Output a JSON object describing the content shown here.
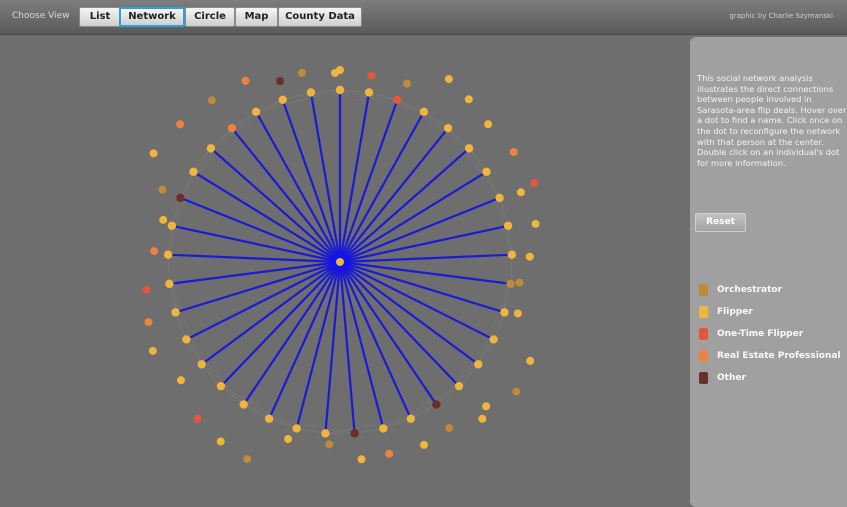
{
  "toolbar": {
    "choose_view_label": "Choose View",
    "tabs": [
      "List",
      "Network",
      "Circle",
      "Map",
      "County Data"
    ],
    "active_tab": "Network",
    "credit": "graphic by Charlie Szymanski"
  },
  "panel": {
    "description_lines": [
      "This social network analysis",
      "illustrates the direct connections",
      "between people involved in",
      "Sarasota-area flip deals. Hover over",
      "a dot to find a name. Click once on",
      "the dot to reconfigure the network",
      "with that person at the center.",
      "Double click on an individual's dot",
      "for more information."
    ],
    "reset_label": "Reset",
    "legend": [
      {
        "label": "Orchestrator",
        "color": "#c08a3a"
      },
      {
        "label": "Flipper",
        "color": "#f0b53c"
      },
      {
        "label": "One-Time Flipper",
        "color": "#e5553e"
      },
      {
        "label": "Real Estate Professional",
        "color": "#ec8440"
      },
      {
        "label": "Other",
        "color": "#6b2f28"
      }
    ]
  },
  "network": {
    "center_color": "#1414e8",
    "spoke_color": "#1b1bd4",
    "secondary_link_color": "#8a8a8a",
    "spoke_types": [
      "flipper",
      "flipper",
      "one_time",
      "flipper",
      "flipper",
      "flipper",
      "flipper",
      "flipper",
      "flipper",
      "flipper",
      "orchestrator",
      "flipper",
      "flipper",
      "flipper",
      "flipper",
      "other",
      "flipper",
      "flipper",
      "other",
      "flipper",
      "flipper",
      "flipper",
      "flipper",
      "flipper",
      "flipper",
      "flipper",
      "flipper",
      "flipper",
      "flipper",
      "flipper",
      "other",
      "flipper",
      "flipper",
      "realestate",
      "flipper",
      "flipper",
      "flipper"
    ],
    "outer_types": [
      "flipper",
      "flipper",
      "flipper",
      "orchestrator",
      "realestate",
      "other",
      "flipper",
      "flipper",
      "orchestrator",
      "realestate",
      "orchestrator",
      "flipper",
      "orchestrator",
      "realestate",
      "flipper",
      "flipper",
      "one_time",
      "flipper",
      "orchestrator",
      "flipper",
      "flipper",
      "orchestrator",
      "realestate",
      "orchestrator",
      "flipper",
      "one_time",
      "realestate",
      "flipper",
      "flipper",
      "flipper",
      "flipper",
      "realestate",
      "orchestrator",
      "flipper",
      "flipper",
      "one_time",
      "orchestrator",
      "flipper",
      "one_time",
      "flipper"
    ]
  }
}
